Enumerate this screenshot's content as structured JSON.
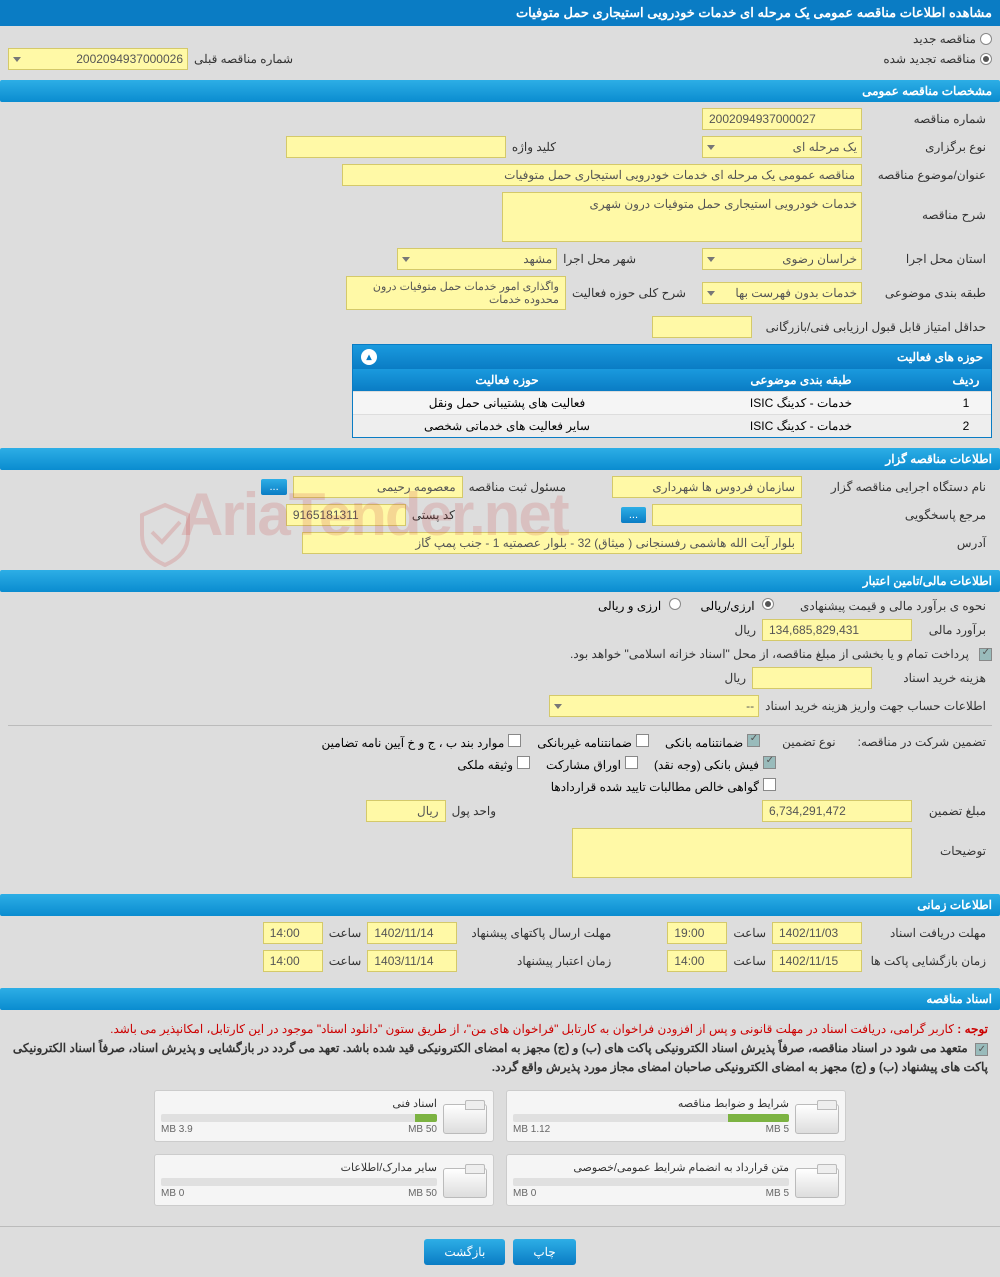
{
  "page_title": "مشاهده اطلاعات مناقصه عمومی یک مرحله ای خدمات خودرویی استیجاری حمل متوفیات",
  "top_options": {
    "new_tender": "مناقصه جدید",
    "renewed_tender": "مناقصه تجدید شده",
    "prev_number_label": "شماره مناقصه قبلی",
    "prev_number": "2002094937000026"
  },
  "sections": {
    "general": "مشخصات مناقصه عمومی",
    "holder": "اطلاعات مناقصه گزار",
    "financial": "اطلاعات مالی/تامین اعتبار",
    "schedule": "اطلاعات زمانی",
    "documents": "اسناد مناقصه"
  },
  "general": {
    "tender_no_label": "شماره مناقصه",
    "tender_no": "2002094937000027",
    "type_label": "نوع برگزاری",
    "type_value": "یک مرحله ای",
    "keyword_label": "کلید واژه",
    "keyword_value": "",
    "subject_label": "عنوان/موضوع مناقصه",
    "subject_value": "مناقصه عمومی یک مرحله ای خدمات خودرویی استیجاری حمل متوفیات",
    "desc_label": "شرح مناقصه",
    "desc_value": "خدمات خودرویی استیجاری حمل متوفیات درون شهری",
    "province_label": "استان محل اجرا",
    "province_value": "خراسان رضوی",
    "city_label": "شهر محل اجرا",
    "city_value": "مشهد",
    "category_label": "طبقه بندی موضوعی",
    "category_value": "خدمات بدون فهرست بها",
    "scope_label": "شرح کلی حوزه فعالیت",
    "scope_value": "واگذاری امور خدمات حمل متوفیات درون محدوده خدمات",
    "min_score_label": "حداقل امتیاز قابل قبول ارزیابی فنی/بازرگانی",
    "min_score_value": ""
  },
  "activity": {
    "title": "حوزه های فعالیت",
    "cols": {
      "idx": "ردیف",
      "cat": "طبقه بندی موضوعی",
      "act": "حوزه فعالیت"
    },
    "rows": [
      {
        "idx": "1",
        "cat": "خدمات - کدینگ ISIC",
        "act": "فعالیت های پشتیبانی حمل ونقل"
      },
      {
        "idx": "2",
        "cat": "خدمات - کدینگ ISIC",
        "act": "سایر فعالیت های خدماتی شخصی"
      }
    ]
  },
  "holder": {
    "org_label": "نام دستگاه اجرایی مناقصه گزار",
    "org_value": "سازمان فردوس ها شهرداری",
    "registrar_label": "مسئول ثبت مناقصه",
    "registrar_value": "معصومه رحیمی",
    "more": "...",
    "responder_label": "مرجع پاسخگویی",
    "responder_value": "",
    "responder_btn": "...",
    "postal_label": "کد پستی",
    "postal_value": "9165181311",
    "address_label": "آدرس",
    "address_value": "بلوار آیت الله هاشمی رفسنجانی ( میثاق) 32 - بلوار عصمتیه 1 - جنب پمپ گاز"
  },
  "financial": {
    "est_method_label": "نحوه ی برآورد مالی و قیمت پیشنهادی",
    "opt_arz_rial": "ارزی/ریالی",
    "opt_arz_o_rial": "ارزی و ریالی",
    "est_label": "برآورد مالی",
    "est_value": "134,685,829,431",
    "rial": "ریال",
    "note1": "پرداخت تمام و یا بخشی از مبلغ مناقصه، از محل \"اسناد خزانه اسلامی\" خواهد بود.",
    "doc_cost_label": "هزینه خرید اسناد",
    "doc_cost_value": "",
    "account_label": "اطلاعات حساب جهت واریز هزینه خرید اسناد",
    "account_value": "--",
    "guarantee_label": "تضمین شرکت در مناقصه:",
    "guarantee_type_label": "نوع تضمین",
    "guarantees": {
      "bank_guarantee": "ضمانتنامه بانکی",
      "nonbank_guarantee": "ضمانتنامه غیربانکی",
      "items_bjkh": "موارد بند ب ، ج و خ آیین نامه تضامین",
      "bank_receipt": "فیش بانکی (وجه نقد)",
      "bonds": "اوراق مشارکت",
      "property": "وثیقه ملکی",
      "net_receivables": "گواهی خالص مطالبات تایید شده قراردادها"
    },
    "guarantee_amount_label": "مبلغ تضمین",
    "guarantee_amount": "6,734,291,472",
    "currency_label": "واحد پول",
    "currency_value": "ریال",
    "remarks_label": "توضیحات"
  },
  "schedule": {
    "doc_deadline_label": "مهلت دریافت اسناد",
    "doc_deadline_date": "1402/11/03",
    "time_label": "ساعت",
    "doc_deadline_time": "19:00",
    "submit_label": "مهلت ارسال پاکتهای پیشنهاد",
    "submit_date": "1402/11/14",
    "submit_time": "14:00",
    "open_label": "زمان بازگشایی پاکت ها",
    "open_date": "1402/11/15",
    "open_time": "14:00",
    "validity_label": "زمان اعتبار پیشنهاد",
    "validity_date": "1403/11/14",
    "validity_time": "14:00"
  },
  "docs": {
    "note_prefix": "توجه : ",
    "note1": "کاربر گرامی، دریافت اسناد در مهلت قانونی و پس از افزودن فراخوان به کارتابل \"فراخوان های من\"، از طریق ستون \"دانلود اسناد\" موجود در این کارتابل، امکانپذیر می باشد.",
    "note2": "متعهد می شود در اسناد مناقصه، صرفاً پذیرش اسناد الکترونیکی پاکت های (ب) و (ج) مجهز به امضای الکترونیکی قید شده باشد. تعهد می گردد در بازگشایی و پذیرش اسناد، صرفاً اسناد الکترونیکی پاکت های پیشنهاد (ب) و (ج) مجهز به امضای الکترونیکی صاحبان امضای مجاز مورد پذیرش واقع گردد.",
    "items": [
      {
        "title": "شرایط و ضوابط مناقصه",
        "size": "1.12 MB",
        "max": "5 MB",
        "pct": 22
      },
      {
        "title": "اسناد فنی",
        "size": "3.9 MB",
        "max": "50 MB",
        "pct": 8
      },
      {
        "title": "متن قرارداد به انضمام شرایط عمومی/خصوصی",
        "size": "0 MB",
        "max": "5 MB",
        "pct": 0
      },
      {
        "title": "سایر مدارک/اطلاعات",
        "size": "0 MB",
        "max": "50 MB",
        "pct": 0
      }
    ]
  },
  "buttons": {
    "print": "چاپ",
    "back": "بازگشت"
  },
  "watermark": "AriaTender.net"
}
